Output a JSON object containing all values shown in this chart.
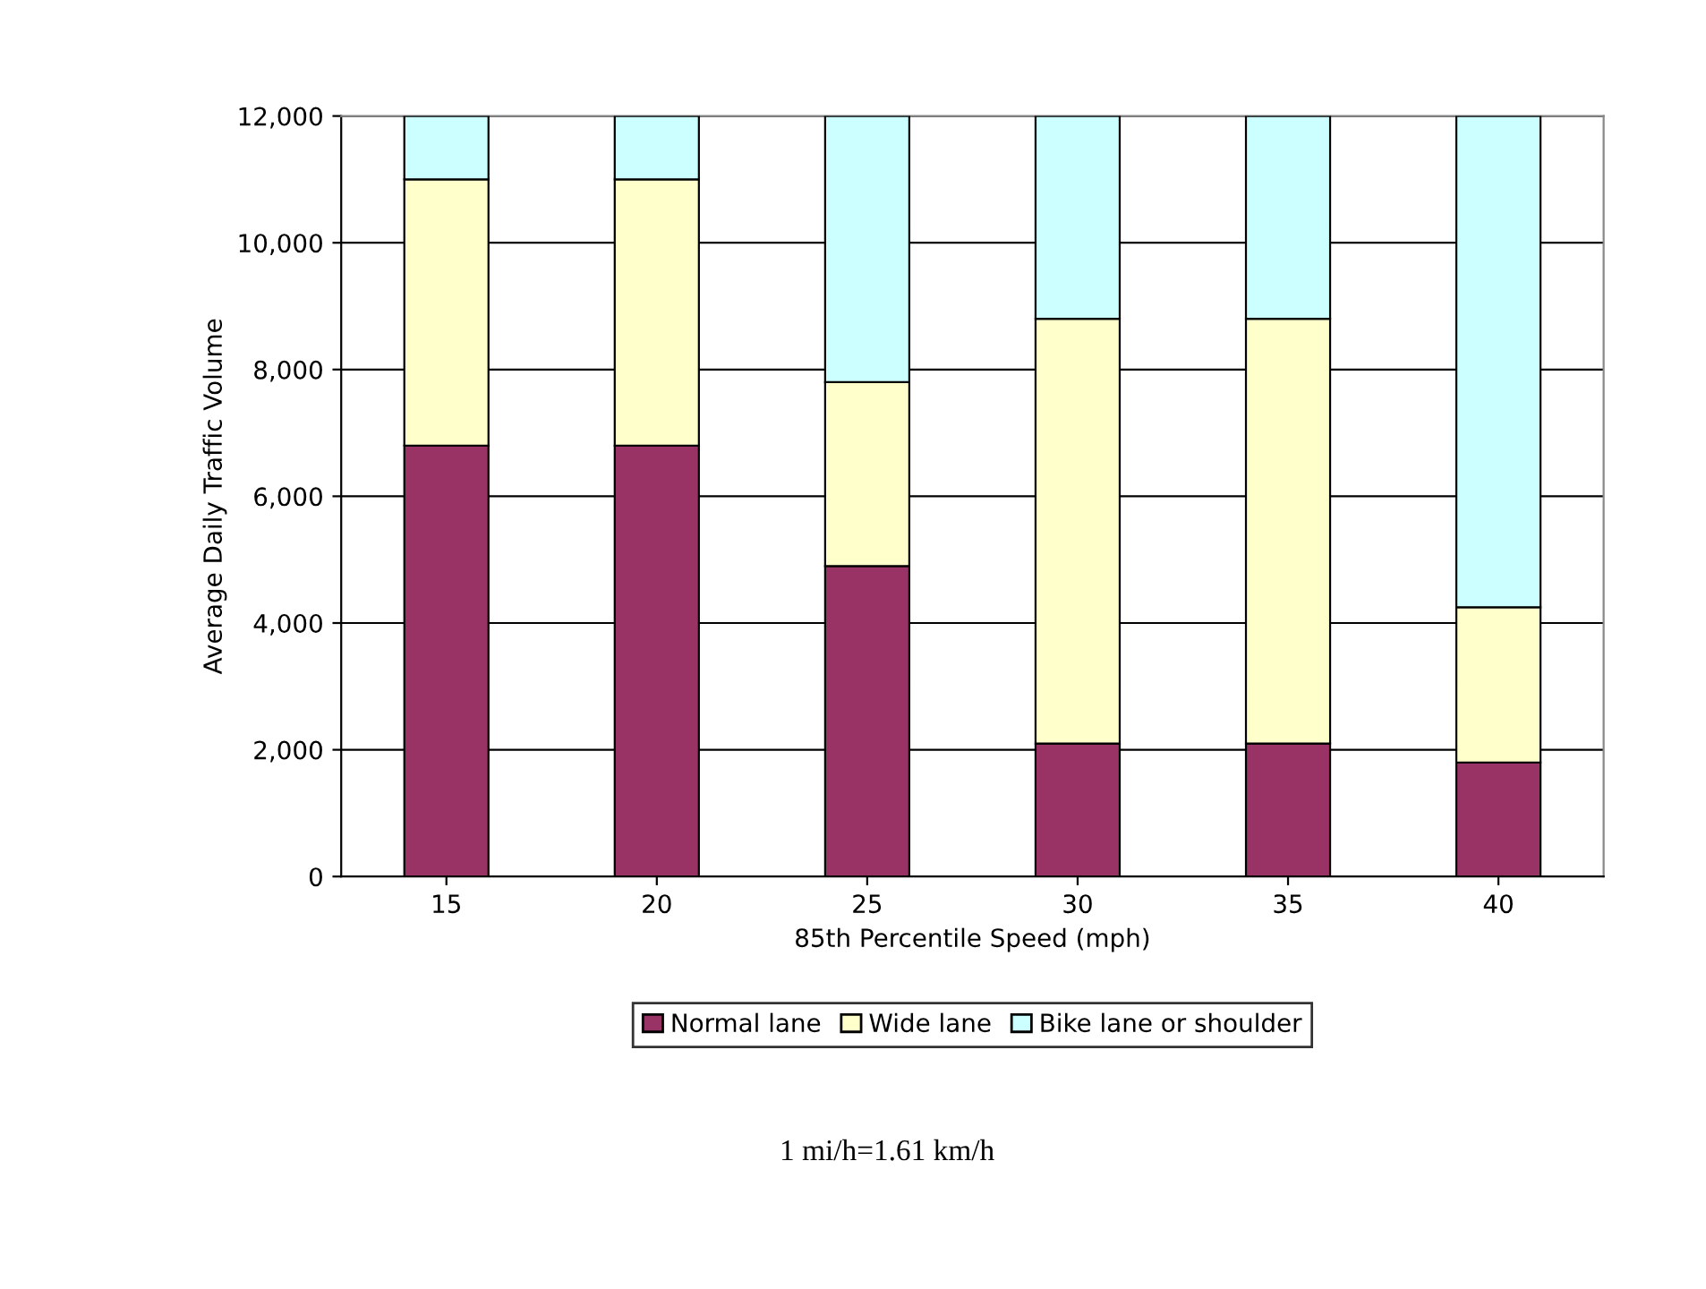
{
  "chart_data": {
    "type": "bar",
    "stacked": true,
    "categories": [
      "15",
      "20",
      "25",
      "30",
      "35",
      "40"
    ],
    "series": [
      {
        "name": "Normal lane",
        "color": "#993366",
        "values": [
          6800,
          6800,
          4900,
          2100,
          2100,
          1800
        ]
      },
      {
        "name": "Wide lane",
        "color": "#ffffcc",
        "values": [
          4200,
          4200,
          2900,
          6700,
          6700,
          2450
        ]
      },
      {
        "name": "Bike lane or shoulder",
        "color": "#ccffff",
        "values": [
          1000,
          1000,
          4200,
          3200,
          3200,
          7750
        ]
      }
    ],
    "xlabel": "85th Percentile Speed (mph)",
    "ylabel": "Average Daily Traffic Volume",
    "ylim": [
      0,
      12000
    ],
    "yticks": [
      {
        "value": 0,
        "label": "0"
      },
      {
        "value": 2000,
        "label": "2,000"
      },
      {
        "value": 4000,
        "label": "4,000"
      },
      {
        "value": 6000,
        "label": "6,000"
      },
      {
        "value": 8000,
        "label": "8,000"
      },
      {
        "value": 10000,
        "label": "10,000"
      },
      {
        "value": 12000,
        "label": "12,000"
      }
    ],
    "grid": "y",
    "legend": "bottom",
    "annotations": [
      "1 mi/h=1.61 km/h"
    ]
  }
}
